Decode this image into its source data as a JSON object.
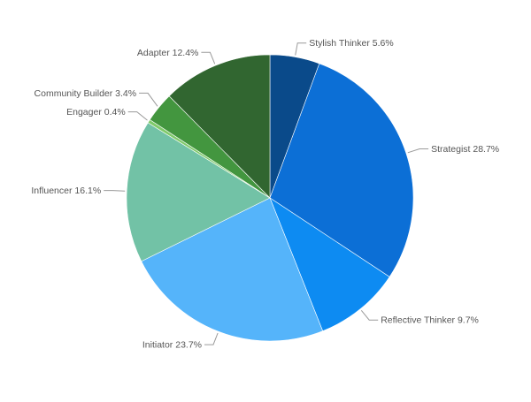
{
  "chart_data": {
    "type": "pie",
    "start_angle_deg": 0,
    "direction": "clockwise",
    "slices": [
      {
        "name": "Stylish Thinker",
        "value": 5.6,
        "label": "Stylish Thinker 5.6%",
        "color": "#0a4a8a"
      },
      {
        "name": "Strategist",
        "value": 28.7,
        "label": "Strategist 28.7%",
        "color": "#0c6fd6"
      },
      {
        "name": "Reflective Thinker",
        "value": 9.7,
        "label": "Reflective Thinker 9.7%",
        "color": "#0d8bf2"
      },
      {
        "name": "Initiator",
        "value": 23.7,
        "label": "Initiator 23.7%",
        "color": "#55b4fa"
      },
      {
        "name": "Influencer",
        "value": 16.1,
        "label": "Influencer 16.1%",
        "color": "#72c2a6"
      },
      {
        "name": "Engager",
        "value": 0.4,
        "label": "Engager 0.4%",
        "color": "#7fca6a"
      },
      {
        "name": "Community Builder",
        "value": 3.4,
        "label": "Community Builder 3.4%",
        "color": "#43963f"
      },
      {
        "name": "Adapter",
        "value": 12.4,
        "label": "Adapter 12.4%",
        "color": "#316630"
      }
    ]
  }
}
